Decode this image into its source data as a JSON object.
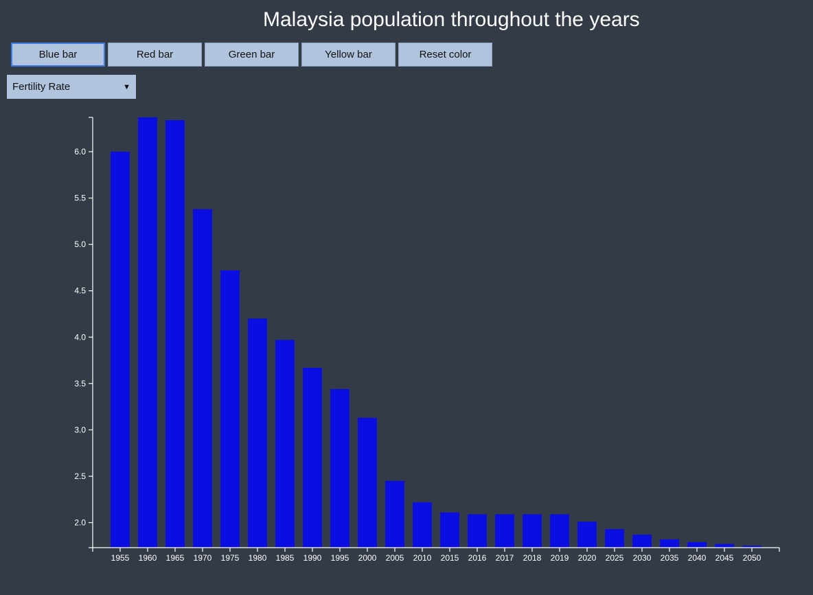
{
  "title": "Malaysia population throughout the years",
  "buttons": [
    {
      "label": "Blue bar",
      "name": "blue-bar-button"
    },
    {
      "label": "Red bar",
      "name": "red-bar-button"
    },
    {
      "label": "Green bar",
      "name": "green-bar-button"
    },
    {
      "label": "Yellow bar",
      "name": "yellow-bar-button"
    },
    {
      "label": "Reset color",
      "name": "reset-color-button"
    }
  ],
  "metric_select": {
    "selected": "Fertility Rate"
  },
  "colors": {
    "background": "#333b46",
    "bar": "#0b0ee0",
    "button": "#b0c4de",
    "axis": "#ffffff"
  },
  "chart_data": {
    "type": "bar",
    "title": "Malaysia population throughout the years",
    "xlabel": "",
    "ylabel": "",
    "categories": [
      "1955",
      "1960",
      "1965",
      "1970",
      "1975",
      "1980",
      "1985",
      "1990",
      "1995",
      "2000",
      "2005",
      "2010",
      "2015",
      "2016",
      "2017",
      "2018",
      "2019",
      "2020",
      "2025",
      "2030",
      "2035",
      "2040",
      "2045",
      "2050"
    ],
    "values": [
      6.0,
      6.37,
      6.34,
      5.38,
      4.72,
      4.2,
      3.97,
      3.67,
      3.44,
      3.13,
      2.45,
      2.22,
      2.11,
      2.09,
      2.09,
      2.09,
      2.09,
      2.01,
      1.93,
      1.87,
      1.82,
      1.79,
      1.77,
      1.75
    ],
    "ylim": [
      1.73,
      6.37
    ],
    "yticks": [
      "2.0",
      "2.5",
      "3.0",
      "3.5",
      "4.0",
      "4.5",
      "5.0",
      "5.5",
      "6.0"
    ],
    "grid": false,
    "legend": "none"
  }
}
